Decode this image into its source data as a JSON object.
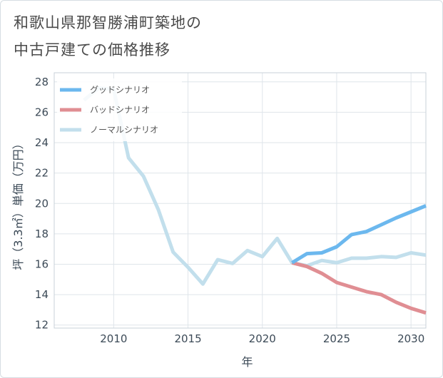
{
  "title": {
    "line1": "和歌山県那智勝浦町築地の",
    "line2": "中古戸建ての価格推移"
  },
  "chart_data": {
    "type": "line",
    "title": "和歌山県那智勝浦町築地の中古戸建ての価格推移",
    "xlabel": "年",
    "ylabel": "坪（3.3㎡）単価（万円）",
    "xlim": [
      2006,
      2031
    ],
    "ylim": [
      11.8,
      28.6
    ],
    "xticks": [
      2010,
      2015,
      2020,
      2025,
      2030
    ],
    "yticks": [
      12,
      14,
      16,
      18,
      20,
      22,
      24,
      26,
      28
    ],
    "grid": true,
    "legend_position": "top-left",
    "series": [
      {
        "name": "グッドシナリオ",
        "color": "#6cb8ee",
        "x": [
          2022,
          2023,
          2024,
          2025,
          2026,
          2027,
          2028,
          2029,
          2030,
          2031
        ],
        "values": [
          16.1,
          16.7,
          16.75,
          17.15,
          17.95,
          18.15,
          18.6,
          19.05,
          19.45,
          19.85
        ]
      },
      {
        "name": "バッドシナリオ",
        "color": "#e08e93",
        "x": [
          2022,
          2023,
          2024,
          2025,
          2026,
          2027,
          2028,
          2029,
          2030,
          2031
        ],
        "values": [
          16.1,
          15.85,
          15.4,
          14.8,
          14.5,
          14.2,
          14.0,
          13.5,
          13.1,
          12.8
        ]
      },
      {
        "name": "ノーマルシナリオ",
        "color": "#c2dfec",
        "x": [
          2008,
          2009,
          2010,
          2011,
          2012,
          2013,
          2014,
          2015,
          2016,
          2017,
          2018,
          2019,
          2020,
          2021,
          2022,
          2023,
          2024,
          2025,
          2026,
          2027,
          2028,
          2029,
          2030,
          2031
        ],
        "values": [
          26.8,
          27.6,
          27.5,
          23.0,
          21.8,
          19.6,
          16.8,
          15.8,
          14.7,
          16.3,
          16.05,
          16.9,
          16.5,
          17.7,
          16.1,
          15.9,
          16.25,
          16.1,
          16.4,
          16.4,
          16.5,
          16.45,
          16.75,
          16.6
        ]
      }
    ]
  }
}
